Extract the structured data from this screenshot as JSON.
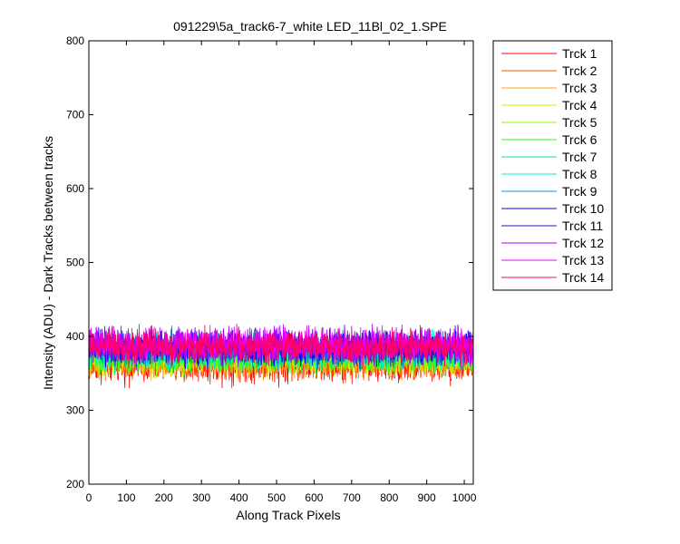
{
  "chart_data": {
    "type": "line",
    "title": "091229\\5a_track6-7_white LED_11Bl_02_1.SPE",
    "xlabel": "Along Track Pixels",
    "ylabel": "Intensity (ADU) - Dark Tracks between tracks",
    "xlim": [
      0,
      1024
    ],
    "ylim": [
      200,
      800
    ],
    "xticks": [
      0,
      100,
      200,
      300,
      400,
      500,
      600,
      700,
      800,
      900,
      1000
    ],
    "yticks": [
      200,
      300,
      400,
      500,
      600,
      700,
      800
    ],
    "grid": false,
    "legend_position": "outside-right",
    "x_points": 1024,
    "series": [
      {
        "name": "Trck 1",
        "color": "#ff0000",
        "mean": 362,
        "spread": 12
      },
      {
        "name": "Trck 2",
        "color": "#ff5500",
        "mean": 366,
        "spread": 11
      },
      {
        "name": "Trck 3",
        "color": "#ffaa00",
        "mean": 368,
        "spread": 11
      },
      {
        "name": "Trck 4",
        "color": "#ddee00",
        "mean": 370,
        "spread": 11
      },
      {
        "name": "Trck 5",
        "color": "#88ff00",
        "mean": 372,
        "spread": 11
      },
      {
        "name": "Trck 6",
        "color": "#22ff22",
        "mean": 374,
        "spread": 11
      },
      {
        "name": "Trck 7",
        "color": "#00ee88",
        "mean": 378,
        "spread": 11
      },
      {
        "name": "Trck 8",
        "color": "#00eecc",
        "mean": 380,
        "spread": 11
      },
      {
        "name": "Trck 9",
        "color": "#0099cc",
        "mean": 382,
        "spread": 11
      },
      {
        "name": "Trck 10",
        "color": "#0000ff",
        "mean": 384,
        "spread": 11
      },
      {
        "name": "Trck 11",
        "color": "#4400cc",
        "mean": 386,
        "spread": 11
      },
      {
        "name": "Trck 12",
        "color": "#aa00ff",
        "mean": 388,
        "spread": 11
      },
      {
        "name": "Trck 13",
        "color": "#ee00ee",
        "mean": 388,
        "spread": 11
      },
      {
        "name": "Trck 14",
        "color": "#ff0066",
        "mean": 386,
        "spread": 11
      }
    ]
  }
}
